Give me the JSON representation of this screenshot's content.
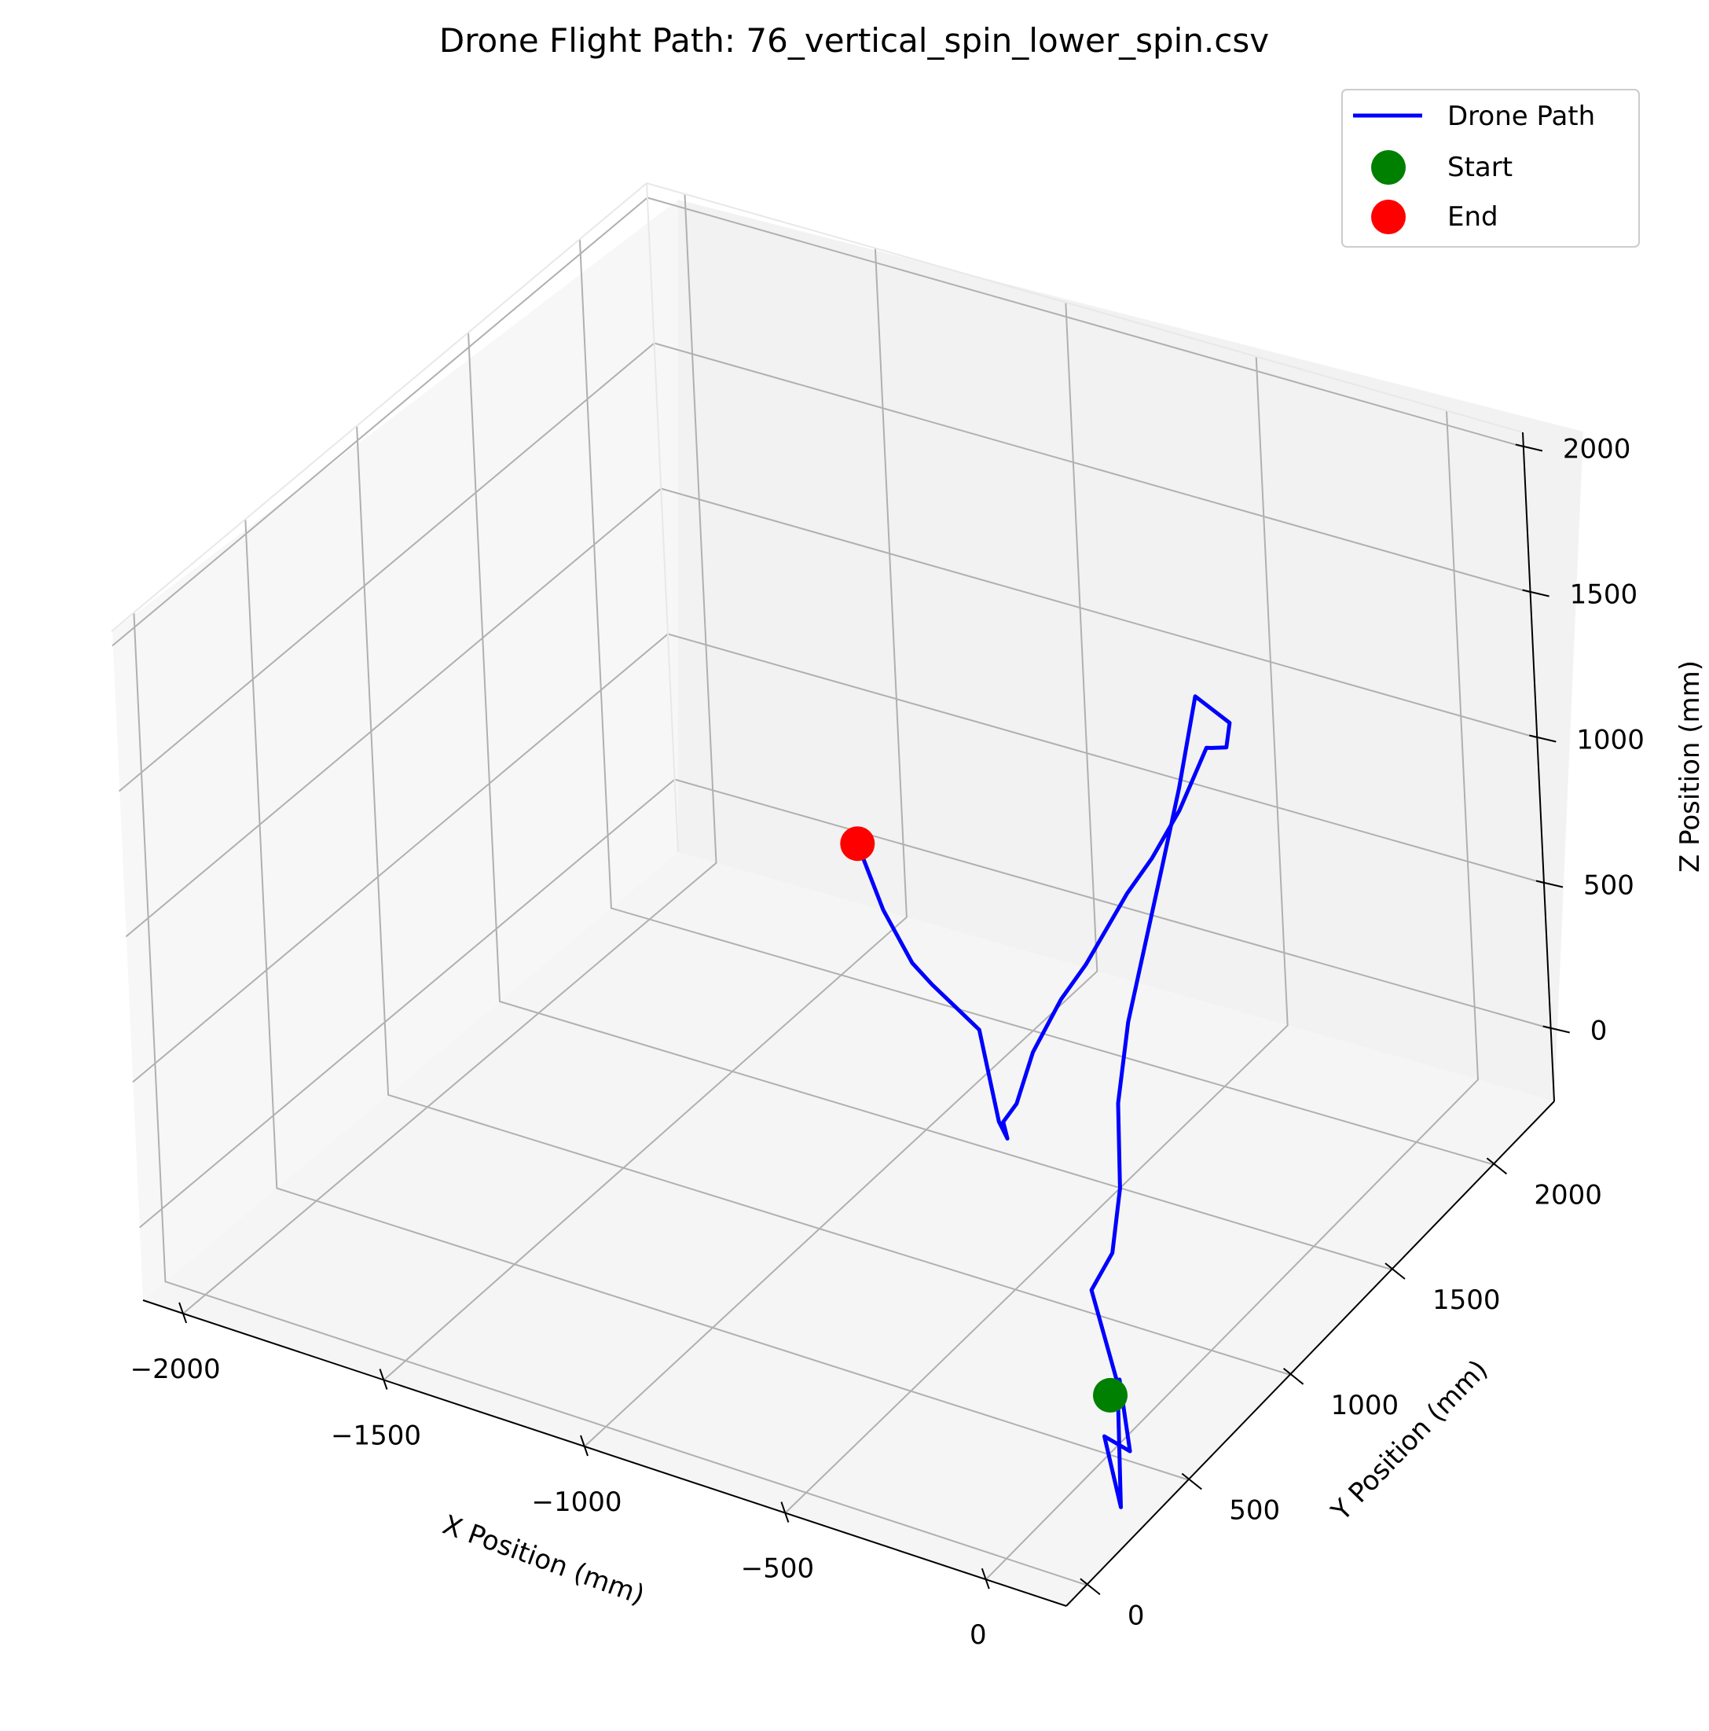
{
  "chart_data": {
    "type": "line3d",
    "title": "Drone Flight Path: 76_vertical_spin_lower_spin.csv",
    "xlabel": "X Position (mm)",
    "ylabel": "Y Position (mm)",
    "zlabel": "Z Position (mm)",
    "xlim": [
      -2100,
      200
    ],
    "ylim": [
      -100,
      2300
    ],
    "zlim": [
      -250,
      2050
    ],
    "x_ticks": [
      -2000,
      -1500,
      -1000,
      -500,
      0
    ],
    "x_tick_labels": [
      "−2000",
      "−1500",
      "−1000",
      "−500",
      "0"
    ],
    "y_ticks": [
      0,
      500,
      1000,
      1500,
      2000
    ],
    "y_tick_labels": [
      "0",
      "500",
      "1000",
      "1500",
      "2000"
    ],
    "z_ticks": [
      0,
      500,
      1000,
      1500,
      2000
    ],
    "z_tick_labels": [
      "0",
      "500",
      "1000",
      "1500",
      "2000"
    ],
    "grid": true,
    "legend_position": "top-right",
    "legend": [
      {
        "label": "Drone Path",
        "kind": "line",
        "color": "#0000ff"
      },
      {
        "label": "Start",
        "kind": "marker",
        "color": "#008000"
      },
      {
        "label": "End",
        "kind": "marker",
        "color": "#ff0000"
      }
    ],
    "series": [
      {
        "name": "Drone Path",
        "color": "#0000ff",
        "x": [
          120,
          80,
          120,
          100,
          150,
          140,
          30,
          0,
          -50,
          -100,
          -120,
          -140,
          -180,
          -240,
          -300,
          -270,
          -350,
          -380,
          -420,
          -470,
          -520,
          -560,
          -590,
          -620,
          -660,
          -700,
          -720,
          -740,
          -760,
          -780,
          -820,
          -850,
          -880,
          -900,
          -940,
          -970
        ],
        "y": [
          300,
          420,
          380,
          300,
          270,
          300,
          400,
          560,
          700,
          800,
          900,
          1000,
          1200,
          1400,
          1600,
          1700,
          1820,
          1800,
          1850,
          1800,
          1750,
          1700,
          1650,
          1600,
          1550,
          1480,
          1430,
          1400,
          1450,
          1450,
          1450,
          1400,
          1350,
          1300,
          1250,
          1200
        ],
        "z": [
          150,
          100,
          -100,
          0,
          -200,
          200,
          400,
          400,
          500,
          700,
          900,
          1000,
          1200,
          1300,
          1450,
          1300,
          1100,
          1100,
          1050,
          850,
          700,
          600,
          500,
          400,
          300,
          150,
          0,
          -50,
          -150,
          -100,
          200,
          300,
          400,
          500,
          700,
          950
        ],
        "start": {
          "x": 120,
          "y": 300,
          "z": 150
        },
        "end": {
          "x": -970,
          "y": 1200,
          "z": 950
        }
      }
    ]
  }
}
